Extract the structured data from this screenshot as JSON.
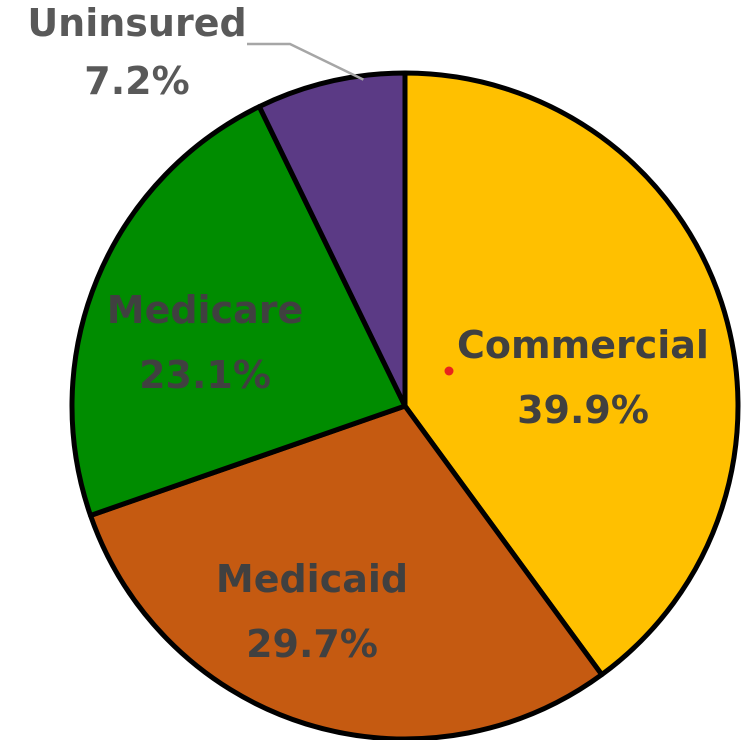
{
  "chart_data": {
    "type": "pie",
    "title": "",
    "slices": [
      {
        "name": "Commercial",
        "value": 39.9,
        "label": "39.9%",
        "color": "#FFC000"
      },
      {
        "name": "Medicaid",
        "value": 29.7,
        "label": "29.7%",
        "color": "#C55A11"
      },
      {
        "name": "Medicare",
        "value": 23.1,
        "label": "23.1%",
        "color": "#008C00"
      },
      {
        "name": "Uninsured",
        "value": 7.2,
        "label": "7.2%",
        "color": "#5B3A85"
      }
    ],
    "start": "12 o'clock",
    "direction": "clockwise",
    "legend": "none",
    "label_style": "category name and percentage on slice; Uninsured label outside with leader line"
  }
}
